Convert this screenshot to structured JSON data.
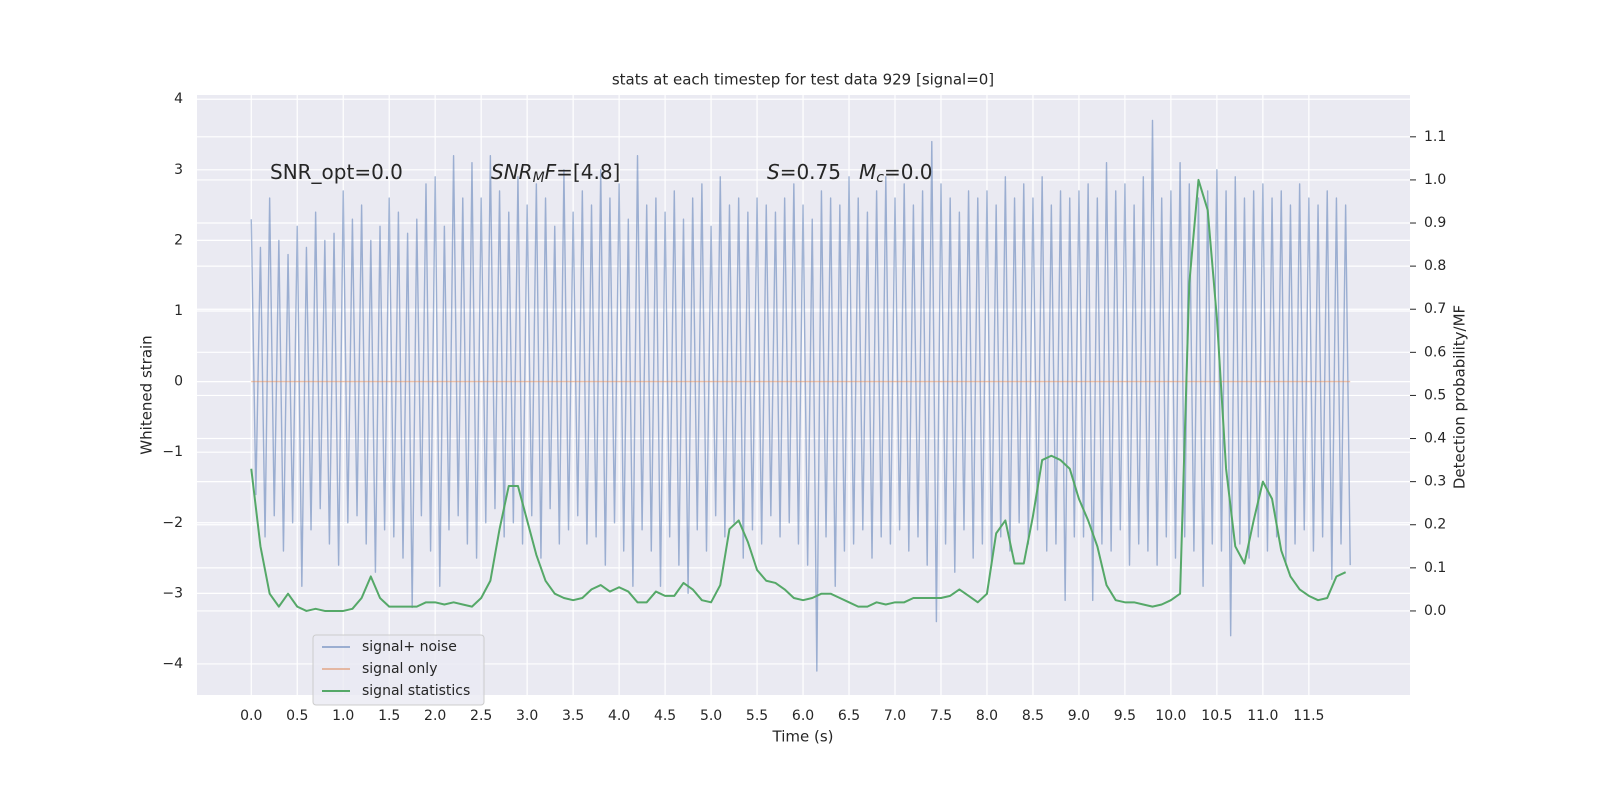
{
  "chart_data": {
    "type": "line",
    "title": "stats at each timestep for test data 929 [signal=0]",
    "xlabel": "Time (s)",
    "ylabel": "Whitened strain",
    "y2label": "Detection probability/MF",
    "annotations": [
      {
        "parts": [
          {
            "text": "SNR_opt=0.0"
          }
        ]
      },
      {
        "parts": [
          {
            "text": "SNR",
            "italic": true
          },
          {
            "text": "M",
            "italic": true,
            "sub": true
          },
          {
            "text": "F",
            "italic": true
          },
          {
            "text": "=[4.8]"
          }
        ]
      },
      {
        "parts": [
          {
            "text": "S",
            "italic": true
          },
          {
            "text": "=0.75"
          }
        ]
      },
      {
        "parts": [
          {
            "text": "M",
            "italic": true
          },
          {
            "text": "c",
            "italic": true,
            "sub": true
          },
          {
            "text": "=0.0"
          }
        ]
      }
    ],
    "x": [
      0.0,
      0.1,
      0.2,
      0.3,
      0.4,
      0.5,
      0.6,
      0.7,
      0.8,
      0.9,
      1.0,
      1.1,
      1.2,
      1.3,
      1.4,
      1.5,
      1.6,
      1.7,
      1.8,
      1.9,
      2.0,
      2.1,
      2.2,
      2.3,
      2.4,
      2.5,
      2.6,
      2.7,
      2.8,
      2.9,
      3.0,
      3.1,
      3.2,
      3.3,
      3.4,
      3.5,
      3.6,
      3.7,
      3.8,
      3.9,
      4.0,
      4.1,
      4.2,
      4.3,
      4.4,
      4.5,
      4.6,
      4.7,
      4.8,
      4.9,
      5.0,
      5.1,
      5.2,
      5.3,
      5.4,
      5.5,
      5.6,
      5.7,
      5.8,
      5.9,
      6.0,
      6.1,
      6.2,
      6.3,
      6.4,
      6.5,
      6.6,
      6.7,
      6.8,
      6.9,
      7.0,
      7.1,
      7.2,
      7.3,
      7.4,
      7.5,
      7.6,
      7.7,
      7.8,
      7.9,
      8.0,
      8.1,
      8.2,
      8.3,
      8.4,
      8.5,
      8.6,
      8.7,
      8.8,
      8.9,
      9.0,
      9.1,
      9.2,
      9.3,
      9.4,
      9.5,
      9.6,
      9.7,
      9.8,
      9.9,
      10.0,
      10.1,
      10.2,
      10.3,
      10.4,
      10.5,
      10.6,
      10.7,
      10.8,
      10.9,
      11.0,
      11.1,
      11.2,
      11.3,
      11.4,
      11.5,
      11.6,
      11.7,
      11.8,
      11.9
    ],
    "series": [
      {
        "name": "signal+ noise",
        "color": "#4c72b0",
        "alpha": 0.5,
        "x": [
          0,
          0.05,
          0.1,
          0.15,
          0.2,
          0.25,
          0.3,
          0.35,
          0.4,
          0.45,
          0.5,
          0.55,
          0.6,
          0.65,
          0.7,
          0.75,
          0.8,
          0.85,
          0.9,
          0.95,
          1,
          1.05,
          1.1,
          1.15,
          1.2,
          1.25,
          1.3,
          1.35,
          1.4,
          1.45,
          1.5,
          1.55,
          1.6,
          1.65,
          1.7,
          1.75,
          1.8,
          1.85,
          1.9,
          1.95,
          2,
          2.05,
          2.1,
          2.15,
          2.2,
          2.25,
          2.3,
          2.35,
          2.4,
          2.45,
          2.5,
          2.55,
          2.6,
          2.65,
          2.7,
          2.75,
          2.8,
          2.85,
          2.9,
          2.95,
          3,
          3.05,
          3.1,
          3.15,
          3.2,
          3.25,
          3.3,
          3.35,
          3.4,
          3.45,
          3.5,
          3.55,
          3.6,
          3.65,
          3.7,
          3.75,
          3.8,
          3.85,
          3.9,
          3.95,
          4,
          4.05,
          4.1,
          4.15,
          4.2,
          4.25,
          4.3,
          4.35,
          4.4,
          4.45,
          4.5,
          4.55,
          4.6,
          4.65,
          4.7,
          4.75,
          4.8,
          4.85,
          4.9,
          4.95,
          5,
          5.05,
          5.1,
          5.15,
          5.2,
          5.25,
          5.3,
          5.35,
          5.4,
          5.45,
          5.5,
          5.55,
          5.6,
          5.65,
          5.7,
          5.75,
          5.8,
          5.85,
          5.9,
          5.95,
          6,
          6.05,
          6.1,
          6.15,
          6.2,
          6.25,
          6.3,
          6.35,
          6.4,
          6.45,
          6.5,
          6.55,
          6.6,
          6.65,
          6.7,
          6.75,
          6.8,
          6.85,
          6.9,
          6.95,
          7,
          7.05,
          7.1,
          7.15,
          7.2,
          7.25,
          7.3,
          7.35,
          7.4,
          7.45,
          7.5,
          7.55,
          7.6,
          7.65,
          7.7,
          7.75,
          7.8,
          7.85,
          7.9,
          7.95,
          8,
          8.05,
          8.1,
          8.15,
          8.2,
          8.25,
          8.3,
          8.35,
          8.4,
          8.45,
          8.5,
          8.55,
          8.6,
          8.65,
          8.7,
          8.75,
          8.8,
          8.85,
          8.9,
          8.95,
          9,
          9.05,
          9.1,
          9.15,
          9.2,
          9.25,
          9.3,
          9.35,
          9.4,
          9.45,
          9.5,
          9.55,
          9.6,
          9.65,
          9.7,
          9.75,
          9.8,
          9.85,
          9.9,
          9.95,
          10,
          10.05,
          10.1,
          10.15,
          10.2,
          10.25,
          10.3,
          10.35,
          10.4,
          10.45,
          10.5,
          10.55,
          10.6,
          10.65,
          10.7,
          10.75,
          10.8,
          10.85,
          10.9,
          10.95,
          11,
          11.05,
          11.1,
          11.15,
          11.2,
          11.25,
          11.3,
          11.35,
          11.4,
          11.45,
          11.5,
          11.55,
          11.6,
          11.65,
          11.7,
          11.75,
          11.8,
          11.85,
          11.9,
          11.95
        ],
        "values": [
          2.3,
          -1.6,
          1.9,
          -2.2,
          2.6,
          -1.9,
          2.0,
          -2.4,
          1.8,
          -2.0,
          2.2,
          -2.9,
          1.9,
          -2.1,
          2.4,
          -1.8,
          2.0,
          -2.3,
          2.1,
          -2.6,
          2.7,
          -2.0,
          2.3,
          -1.9,
          2.5,
          -2.3,
          2.0,
          -2.7,
          2.2,
          -2.1,
          2.6,
          -2.2,
          2.4,
          -2.5,
          2.1,
          -3.2,
          2.3,
          -1.9,
          2.8,
          -2.4,
          2.9,
          -2.9,
          2.2,
          -2.1,
          3.2,
          -1.9,
          2.6,
          -2.3,
          3.1,
          -2.5,
          2.6,
          -2.0,
          3.2,
          -1.8,
          2.7,
          -2.2,
          2.4,
          -2.0,
          2.9,
          -2.3,
          2.5,
          -1.9,
          2.8,
          -2.5,
          2.6,
          -1.8,
          2.2,
          -2.3,
          3.0,
          -2.1,
          2.4,
          -1.9,
          2.7,
          -2.3,
          2.5,
          -2.2,
          3.0,
          -2.6,
          2.6,
          -2.0,
          2.8,
          -2.4,
          2.3,
          -2.9,
          3.2,
          -2.1,
          2.5,
          -2.4,
          2.6,
          -2.9,
          2.4,
          -2.2,
          2.7,
          -2.6,
          2.3,
          -3.0,
          2.6,
          -2.1,
          2.8,
          -2.4,
          2.2,
          -1.9,
          2.9,
          -2.2,
          2.5,
          -2.0,
          2.6,
          -2.5,
          2.4,
          -2.1,
          2.6,
          -2.3,
          2.5,
          -1.9,
          2.4,
          -2.2,
          2.6,
          -2.0,
          2.8,
          -2.3,
          2.5,
          -2.6,
          2.3,
          -4.1,
          2.7,
          -2.2,
          2.6,
          -2.9,
          2.5,
          -2.4,
          2.9,
          -2.3,
          2.6,
          -2.1,
          2.4,
          -2.5,
          2.7,
          -2.2,
          2.9,
          -2.3,
          2.6,
          -2.1,
          2.8,
          -2.4,
          2.5,
          -2.2,
          2.7,
          -2.6,
          3.4,
          -3.4,
          2.8,
          -2.3,
          2.6,
          -2.7,
          2.4,
          -2.1,
          2.7,
          -2.5,
          2.6,
          -2.3,
          2.7,
          -2.6,
          2.5,
          -2.2,
          2.9,
          -2.4,
          2.6,
          -2.0,
          2.8,
          -2.3,
          2.6,
          -2.1,
          2.9,
          -2.4,
          2.5,
          -2.3,
          2.7,
          -3.1,
          2.6,
          -2.2,
          2.7,
          -2.2,
          2.8,
          -3.1,
          2.6,
          -2.3,
          3.1,
          -2.4,
          2.7,
          -2.1,
          2.8,
          -2.6,
          2.5,
          -2.3,
          2.9,
          -2.4,
          3.7,
          -2.6,
          2.6,
          -2.2,
          2.7,
          -2.5,
          3.1,
          -2.2,
          2.8,
          -2.4,
          2.6,
          -2.9,
          2.7,
          -2.3,
          3.0,
          -2.4,
          2.7,
          -3.6,
          2.9,
          -2.3,
          2.6,
          -2.5,
          2.7,
          -2.2,
          2.8,
          -2.4,
          2.6,
          -2.2,
          2.7,
          -2.6,
          2.5,
          -2.3,
          2.8,
          -2.1,
          2.6,
          -2.4,
          2.5,
          -2.2,
          2.7,
          -2.8,
          2.6,
          -2.3,
          2.5,
          -2.6
        ]
      },
      {
        "name": "signal only",
        "color": "#dd8452",
        "alpha": 0.5,
        "x": [
          0.0,
          11.95
        ],
        "values": [
          0,
          0
        ]
      },
      {
        "name": "signal statistics",
        "color": "#55a868",
        "axis": "y2",
        "values": [
          0.33,
          0.15,
          0.04,
          0.01,
          0.04,
          0.01,
          0.0,
          0.005,
          0.0,
          0.0,
          0.0,
          0.005,
          0.03,
          0.08,
          0.03,
          0.01,
          0.01,
          0.01,
          0.01,
          0.02,
          0.02,
          0.015,
          0.02,
          0.015,
          0.01,
          0.03,
          0.07,
          0.19,
          0.29,
          0.29,
          0.21,
          0.13,
          0.07,
          0.04,
          0.03,
          0.025,
          0.03,
          0.05,
          0.06,
          0.045,
          0.055,
          0.045,
          0.02,
          0.02,
          0.045,
          0.035,
          0.035,
          0.065,
          0.05,
          0.025,
          0.02,
          0.06,
          0.19,
          0.21,
          0.16,
          0.095,
          0.07,
          0.065,
          0.05,
          0.03,
          0.025,
          0.03,
          0.04,
          0.04,
          0.03,
          0.02,
          0.01,
          0.01,
          0.02,
          0.015,
          0.02,
          0.02,
          0.03,
          0.03,
          0.03,
          0.03,
          0.035,
          0.05,
          0.035,
          0.02,
          0.04,
          0.18,
          0.21,
          0.11,
          0.11,
          0.22,
          0.35,
          0.36,
          0.35,
          0.33,
          0.26,
          0.21,
          0.15,
          0.06,
          0.025,
          0.02,
          0.02,
          0.015,
          0.01,
          0.015,
          0.025,
          0.04,
          0.76,
          1.0,
          0.93,
          0.68,
          0.33,
          0.15,
          0.11,
          0.21,
          0.3,
          0.26,
          0.14,
          0.08,
          0.05,
          0.035,
          0.025,
          0.03,
          0.08,
          0.09
        ]
      }
    ],
    "xlim": [
      -0.59,
      12.6
    ],
    "ylim": [
      -4.44,
      4.06
    ],
    "y2lim": [
      -0.195,
      1.197
    ],
    "xticks": [
      {
        "value": 0,
        "label": "0.0"
      },
      {
        "value": 0.5,
        "label": "0.5"
      },
      {
        "value": 1,
        "label": "1.0"
      },
      {
        "value": 1.5,
        "label": "1.5"
      },
      {
        "value": 2,
        "label": "2.0"
      },
      {
        "value": 2.5,
        "label": "2.5"
      },
      {
        "value": 3,
        "label": "3.0"
      },
      {
        "value": 3.5,
        "label": "3.5"
      },
      {
        "value": 4,
        "label": "4.0"
      },
      {
        "value": 4.5,
        "label": "4.5"
      },
      {
        "value": 5,
        "label": "5.0"
      },
      {
        "value": 5.5,
        "label": "5.5"
      },
      {
        "value": 6,
        "label": "6.0"
      },
      {
        "value": 6.5,
        "label": "6.5"
      },
      {
        "value": 7,
        "label": "7.0"
      },
      {
        "value": 7.5,
        "label": "7.5"
      },
      {
        "value": 8,
        "label": "8.0"
      },
      {
        "value": 8.5,
        "label": "8.5"
      },
      {
        "value": 9,
        "label": "9.0"
      },
      {
        "value": 9.5,
        "label": "9.5"
      },
      {
        "value": 10,
        "label": "10.0"
      },
      {
        "value": 10.5,
        "label": "10.5"
      },
      {
        "value": 11,
        "label": "11.0"
      },
      {
        "value": 11.5,
        "label": "11.5"
      }
    ],
    "yticks": [
      {
        "value": -4,
        "label": "−4"
      },
      {
        "value": -3,
        "label": "−3"
      },
      {
        "value": -2,
        "label": "−2"
      },
      {
        "value": -1,
        "label": "−1"
      },
      0,
      1,
      2,
      3,
      4
    ],
    "y2ticks": [
      {
        "value": 0,
        "label": "0.0"
      },
      {
        "value": 0.1,
        "label": "0.1"
      },
      {
        "value": 0.2,
        "label": "0.2"
      },
      {
        "value": 0.3,
        "label": "0.3"
      },
      {
        "value": 0.4,
        "label": "0.4"
      },
      {
        "value": 0.5,
        "label": "0.5"
      },
      {
        "value": 0.6,
        "label": "0.6"
      },
      {
        "value": 0.7,
        "label": "0.7"
      },
      {
        "value": 0.8,
        "label": "0.8"
      },
      {
        "value": 0.9,
        "label": "0.9"
      },
      {
        "value": 1,
        "label": "1.0"
      },
      {
        "value": 1.1,
        "label": "1.1"
      }
    ],
    "grid": true,
    "legend": "lower left"
  }
}
